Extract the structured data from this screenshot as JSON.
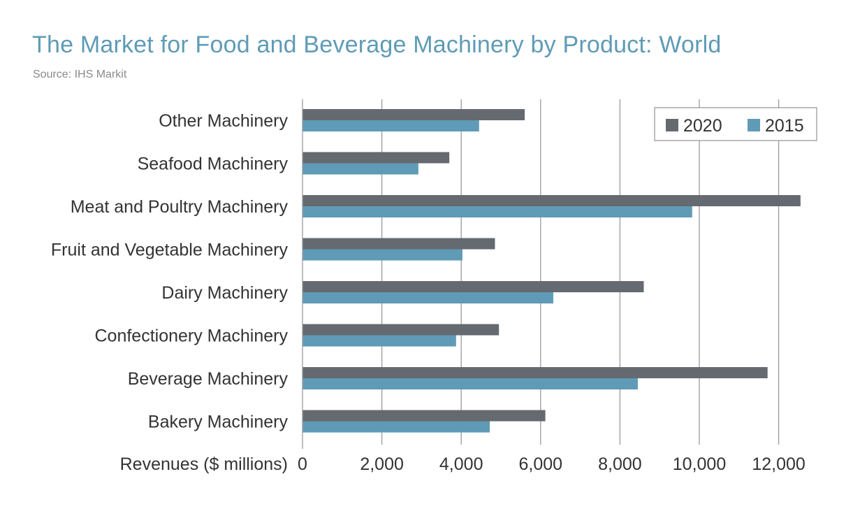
{
  "chart_data": {
    "type": "bar",
    "orientation": "horizontal",
    "title": "The Market for Food and Beverage Machinery by Product: World",
    "subtitle": "Source: IHS Markit",
    "xlabel": "Revenues ($ millions)",
    "ylabel": "",
    "xlim": [
      0,
      12500
    ],
    "xticks": [
      0,
      2000,
      4000,
      6000,
      8000,
      10000,
      12000
    ],
    "xtick_labels": [
      "0",
      "2,000",
      "4,000",
      "6,000",
      "8,000",
      "10,000",
      "12,000"
    ],
    "grid": true,
    "legend_position": "top-right",
    "categories": [
      "Other Machinery",
      "Seafood Machinery",
      "Meat and Poultry Machinery",
      "Fruit and Vegetable Machinery",
      "Dairy Machinery",
      "Confectionery Machinery",
      "Beverage Machinery",
      "Bakery Machinery"
    ],
    "series": [
      {
        "name": "2020",
        "color": "#646a70",
        "values": [
          5600,
          3700,
          12550,
          4850,
          8600,
          4950,
          11720,
          6120
        ]
      },
      {
        "name": "2015",
        "color": "#5f9bb6",
        "values": [
          4450,
          2920,
          9820,
          4030,
          6320,
          3870,
          8450,
          4720
        ]
      }
    ]
  }
}
